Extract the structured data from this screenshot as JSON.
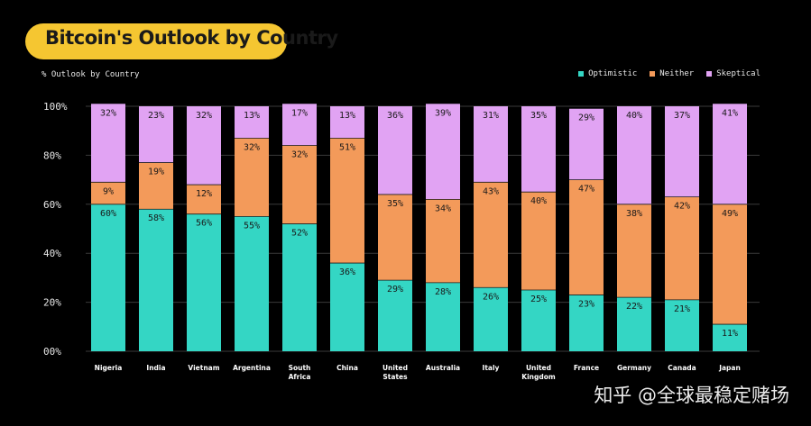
{
  "chart_data": {
    "type": "bar",
    "stacked": true,
    "title": "Bitcoin's Outlook by Country",
    "ylabel": "% Outlook by Country",
    "ylim": [
      0,
      100
    ],
    "yticks": [
      "00%",
      "20%",
      "40%",
      "60%",
      "80%",
      "100%"
    ],
    "legend_position": "top-right",
    "categories": [
      [
        "Nigeria"
      ],
      [
        "India"
      ],
      [
        "Vietnam"
      ],
      [
        "Argentina"
      ],
      [
        "South",
        "Africa"
      ],
      [
        "China"
      ],
      [
        "United",
        "States"
      ],
      [
        "Australia"
      ],
      [
        "Italy"
      ],
      [
        "United",
        "Kingdom"
      ],
      [
        "France"
      ],
      [
        "Germany"
      ],
      [
        "Canada"
      ],
      [
        "Japan"
      ]
    ],
    "series": [
      {
        "name": "Optimistic",
        "color": "#34D6C4",
        "values": [
          60,
          58,
          56,
          55,
          52,
          36,
          29,
          28,
          26,
          25,
          23,
          22,
          21,
          11
        ]
      },
      {
        "name": "Neither",
        "color": "#F39A5A",
        "values": [
          9,
          19,
          12,
          32,
          32,
          51,
          35,
          34,
          43,
          40,
          47,
          38,
          42,
          49
        ]
      },
      {
        "name": "Skeptical",
        "color": "#E1A3F3",
        "values": [
          32,
          23,
          32,
          13,
          17,
          13,
          36,
          39,
          31,
          35,
          29,
          40,
          37,
          41
        ]
      }
    ]
  },
  "watermark": "知乎 @全球最稳定赌场"
}
